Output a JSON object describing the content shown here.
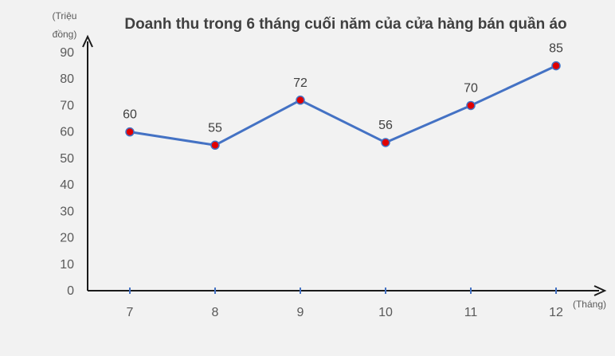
{
  "chart_data": {
    "type": "line",
    "title": "Doanh thu trong 6 tháng cuối năm của cửa hàng bán quần áo",
    "ylabel": "(Triệu đồng)",
    "ylabel_lines": [
      "(Triệu",
      "đồng)"
    ],
    "xlabel": "(Tháng)",
    "categories": [
      "7",
      "8",
      "9",
      "10",
      "11",
      "12"
    ],
    "series": [
      {
        "values": [
          60,
          55,
          72,
          56,
          70,
          85
        ]
      }
    ],
    "ylim": [
      0,
      90
    ],
    "yticks": [
      0,
      10,
      20,
      30,
      40,
      50,
      60,
      70,
      80,
      90
    ],
    "data_labels": [
      "60",
      "55",
      "72",
      "56",
      "70",
      "85"
    ],
    "grid": false,
    "legend": "none",
    "colors": {
      "line": "#4472c4",
      "marker": "#e00000",
      "axis": "#1a1a1a",
      "tick_marker": "#4472c4",
      "background": "#f2f2f2"
    }
  }
}
